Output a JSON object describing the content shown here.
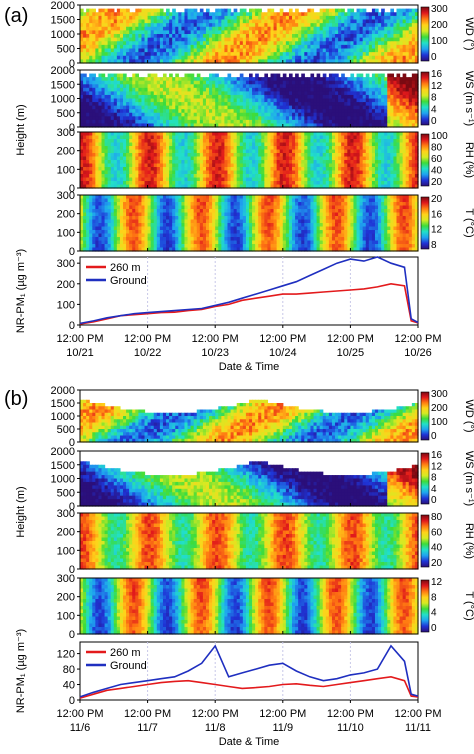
{
  "chart_data": [
    {
      "type": "heatmap",
      "panel_label": "(a)",
      "shared_ylabel": "Height (m)",
      "xlabel": "Date & Time",
      "x_tick_times": [
        "12:00 PM",
        "12:00 PM",
        "12:00 PM",
        "12:00 PM",
        "12:00 PM",
        "12:00 PM"
      ],
      "x_tick_dates": [
        "10/21",
        "10/22",
        "10/23",
        "10/24",
        "10/25",
        "10/26"
      ],
      "heatmaps": [
        {
          "label": "WD (°)",
          "yticks": [
            "2000",
            "1500",
            "1000",
            "500",
            "0"
          ],
          "ylim": [
            0,
            2000
          ],
          "cbar_ticks": [
            "300",
            "200",
            "100",
            "0"
          ],
          "cbar_range": [
            0,
            360
          ]
        },
        {
          "label": "WS (m s⁻¹)",
          "yticks": [
            "2000",
            "1500",
            "1000",
            "500",
            "0"
          ],
          "ylim": [
            0,
            2000
          ],
          "cbar_ticks": [
            "16",
            "12",
            "8",
            "4",
            "0"
          ],
          "cbar_range": [
            0,
            16
          ]
        },
        {
          "label": "RH (%)",
          "yticks": [
            "300",
            "200",
            "100",
            "0"
          ],
          "ylim": [
            0,
            300
          ],
          "cbar_ticks": [
            "100",
            "80",
            "60",
            "40",
            "20"
          ],
          "cbar_range": [
            20,
            100
          ]
        },
        {
          "label": "T (°C)",
          "yticks": [
            "300",
            "200",
            "100",
            "0"
          ],
          "ylim": [
            0,
            300
          ],
          "cbar_ticks": [
            "20",
            "16",
            "12",
            "8"
          ],
          "cbar_range": [
            6,
            20
          ]
        }
      ],
      "line_panel": {
        "ylabel": "NR-PM₁ (µg m⁻³)",
        "yticks": [
          "300",
          "200",
          "100",
          "0"
        ],
        "ylim": [
          0,
          330
        ],
        "x": [
          0,
          0.2,
          0.4,
          0.6,
          0.8,
          1.0,
          1.2,
          1.4,
          1.6,
          1.8,
          2.0,
          2.2,
          2.4,
          2.6,
          2.8,
          3.0,
          3.2,
          3.4,
          3.6,
          3.8,
          4.0,
          4.2,
          4.4,
          4.6,
          4.8,
          4.9,
          5.0
        ],
        "series": [
          {
            "name": "260 m",
            "color": "#e31a1c",
            "values": [
              5,
              15,
              30,
              45,
              50,
              55,
              60,
              62,
              70,
              75,
              90,
              100,
              120,
              130,
              140,
              150,
              150,
              155,
              160,
              165,
              170,
              175,
              185,
              200,
              190,
              20,
              10
            ]
          },
          {
            "name": "Ground",
            "color": "#1f2fc0",
            "values": [
              8,
              20,
              35,
              45,
              55,
              60,
              65,
              70,
              75,
              80,
              95,
              110,
              130,
              150,
              170,
              190,
              210,
              240,
              270,
              300,
              320,
              310,
              330,
              300,
              280,
              30,
              12
            ]
          }
        ]
      }
    },
    {
      "type": "heatmap",
      "panel_label": "(b)",
      "shared_ylabel": "Height (m)",
      "xlabel": "Date & Time",
      "x_tick_times": [
        "12:00 PM",
        "12:00 PM",
        "12:00 PM",
        "12:00 PM",
        "12:00 PM",
        "12:00 PM"
      ],
      "x_tick_dates": [
        "11/6",
        "11/7",
        "11/8",
        "11/9",
        "11/10",
        "11/11"
      ],
      "heatmaps": [
        {
          "label": "WD (°)",
          "yticks": [
            "2000",
            "1500",
            "1000",
            "500",
            "0"
          ],
          "ylim": [
            0,
            2000
          ],
          "cbar_ticks": [
            "300",
            "200",
            "100",
            "0"
          ],
          "cbar_range": [
            0,
            360
          ]
        },
        {
          "label": "WS (m s⁻¹)",
          "yticks": [
            "2000",
            "1500",
            "1000",
            "500",
            "0"
          ],
          "ylim": [
            0,
            2000
          ],
          "cbar_ticks": [
            "16",
            "12",
            "8",
            "4",
            "0"
          ],
          "cbar_range": [
            0,
            16
          ]
        },
        {
          "label": "RH (%)",
          "yticks": [
            "300",
            "200",
            "100",
            "0"
          ],
          "ylim": [
            0,
            300
          ],
          "cbar_ticks": [
            "80",
            "60",
            "40",
            "20"
          ],
          "cbar_range": [
            10,
            80
          ]
        },
        {
          "label": "T (°C)",
          "yticks": [
            "300",
            "200",
            "100",
            "0"
          ],
          "ylim": [
            0,
            300
          ],
          "cbar_ticks": [
            "12",
            "8",
            "4",
            "0"
          ],
          "cbar_range": [
            -1,
            14
          ]
        }
      ],
      "line_panel": {
        "ylabel": "NR-PM₁ (µg m⁻³)",
        "yticks": [
          "120",
          "80",
          "40",
          "0"
        ],
        "ylim": [
          0,
          150
        ],
        "x": [
          0,
          0.2,
          0.4,
          0.6,
          0.8,
          1.0,
          1.2,
          1.4,
          1.6,
          1.8,
          2.0,
          2.2,
          2.4,
          2.6,
          2.8,
          3.0,
          3.2,
          3.4,
          3.6,
          3.8,
          4.0,
          4.2,
          4.4,
          4.6,
          4.8,
          4.9,
          5.0
        ],
        "series": [
          {
            "name": "260 m",
            "color": "#e31a1c",
            "values": [
              5,
              15,
              25,
              30,
              35,
              40,
              45,
              48,
              50,
              45,
              40,
              35,
              30,
              32,
              35,
              40,
              42,
              38,
              35,
              40,
              45,
              50,
              55,
              60,
              50,
              10,
              8
            ]
          },
          {
            "name": "Ground",
            "color": "#1f2fc0",
            "values": [
              8,
              20,
              30,
              40,
              45,
              50,
              55,
              60,
              75,
              95,
              140,
              60,
              70,
              80,
              90,
              95,
              75,
              60,
              50,
              55,
              65,
              70,
              80,
              140,
              100,
              15,
              10
            ]
          }
        ]
      }
    }
  ]
}
